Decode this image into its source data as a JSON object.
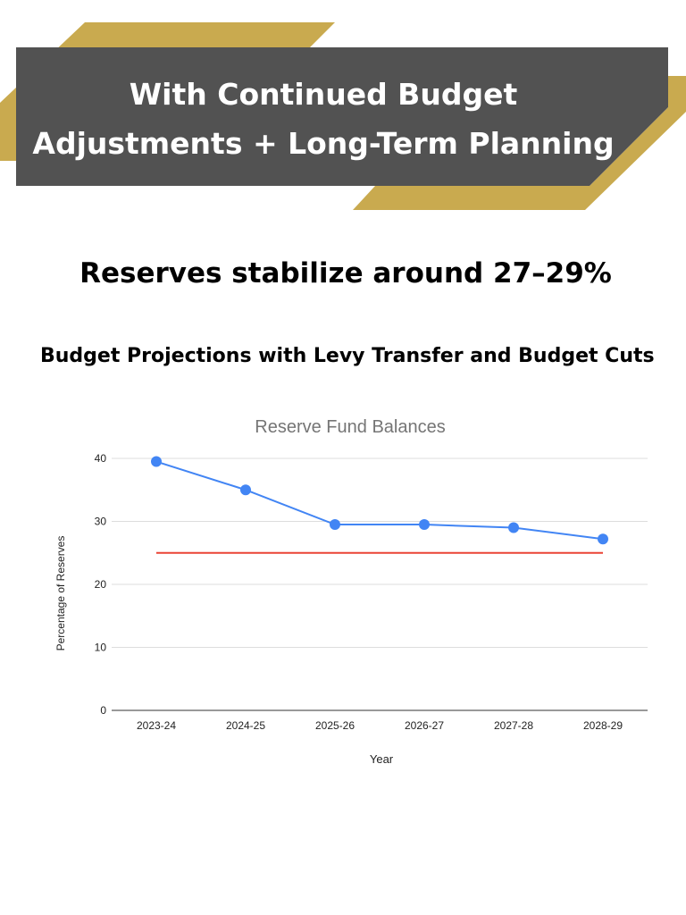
{
  "header": {
    "lines": [
      "With Continued Budget",
      "Adjustments + Long-Term Planning"
    ]
  },
  "subtitle": "Reserves stabilize around 27–29%",
  "section_title": "Budget Projections with Levy Transfer and Budget Cuts",
  "chart_data": {
    "type": "line",
    "title": "Reserve Fund Balances",
    "x_label": "Year",
    "y_label": "Percentage of Reserves",
    "categories": [
      "2023-24",
      "2024-25",
      "2025-26",
      "2026-27",
      "2027-28",
      "2028-29"
    ],
    "series": [
      {
        "color": "#4285f4",
        "markers": true,
        "values": [
          39.5,
          35,
          29.5,
          29.5,
          29,
          27.2
        ]
      },
      {
        "color": "#ea4335",
        "markers": false,
        "values": [
          25,
          25,
          25,
          25,
          25,
          25
        ]
      }
    ],
    "ylim": [
      0,
      40
    ],
    "yticks": [
      0,
      10,
      20,
      30,
      40
    ],
    "grid": true
  }
}
